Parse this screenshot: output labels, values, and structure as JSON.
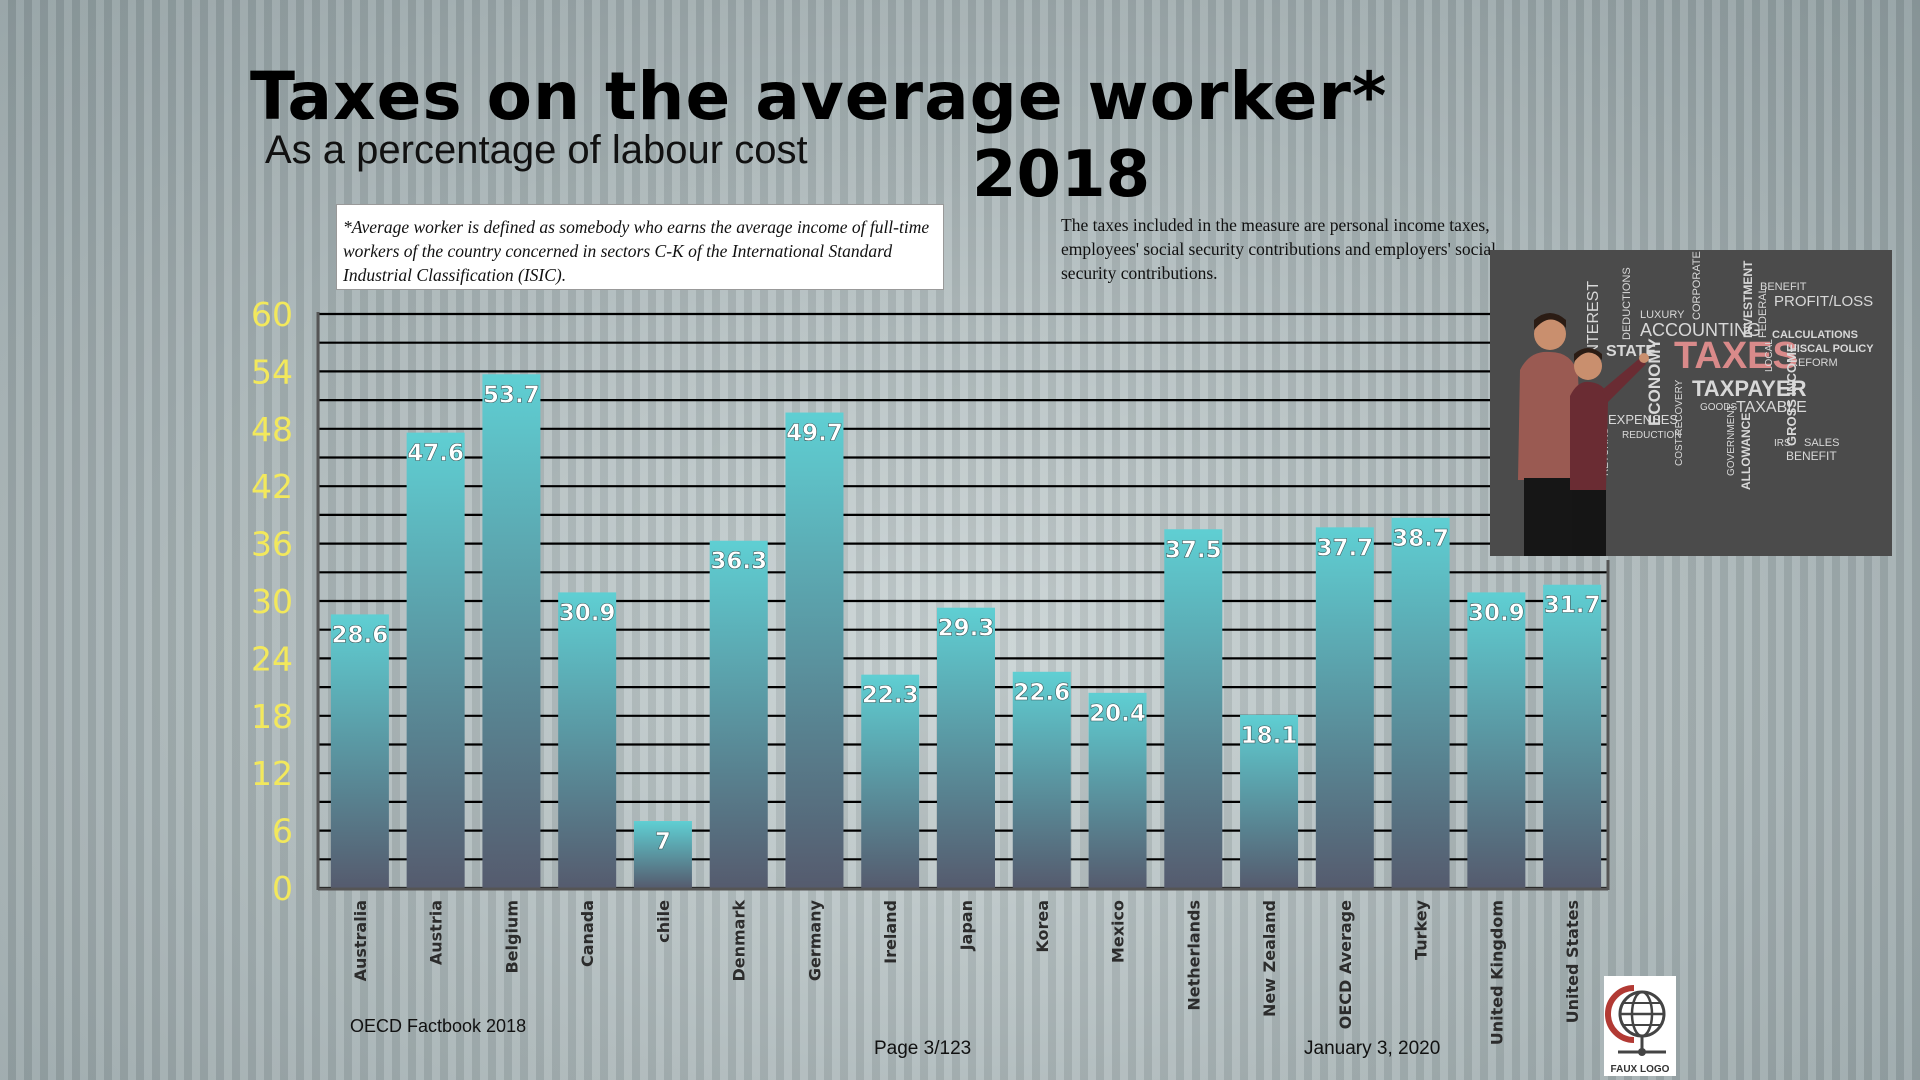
{
  "slide": {
    "title": "Taxes on the average worker*",
    "subtitle": "As a percentage of labour cost",
    "year": "2018",
    "definition": "*Average worker is defined as somebody who earns the average income of full-time workers of the country concerned in sectors C-K of the International Standard Industrial Classification (ISIC).",
    "taxes_note": "The taxes included in the measure are personal income taxes, employees' social security contributions and employers' social security contributions.",
    "source": "OECD Factbook 2018",
    "page": "Page 3/123",
    "date": "January 3, 2020",
    "logo_text": "FAUX LOGO"
  },
  "image": {
    "description_icon": "taxes-word-cloud-image",
    "words": [
      "TAXES",
      "TAXPAYER",
      "ACCOUNTING",
      "PROFIT/LOSS",
      "FISCAL POLICY",
      "ECONOMY",
      "GROSS INCOME",
      "TAXABLE",
      "CALCULATIONS",
      "STATE",
      "LUXURY",
      "SALES",
      "BENEFIT",
      "INVESTMENT",
      "FEDERAL",
      "DEDUCTIONS",
      "CORPORATE",
      "ALLOWANCE",
      "GOVERNMENT",
      "COST RECOVERY",
      "REFORM",
      "LOCAL",
      "GOODS",
      "IRS",
      "EXPENSES",
      "REDUCTION",
      "INTEREST",
      "RETURNS",
      "BENEFIT"
    ]
  },
  "colors": {
    "bar_top": "#5fcfd3",
    "bar_bottom": "#555b6e",
    "axis_label": "#f2e85c",
    "gridline": "#000000",
    "taxes_word": "#d98a8a"
  },
  "chart_data": {
    "type": "bar",
    "title": "Taxes on the average worker*",
    "subtitle": "As a percentage of labour cost",
    "categories": [
      "Australia",
      "Austria",
      "Belgium",
      "Canada",
      "chile",
      "Denmark",
      "Germany",
      "Ireland",
      "Japan",
      "Korea",
      "Mexico",
      "Netherlands",
      "New Zealand",
      "OECD Average",
      "Turkey",
      "United Kingdom",
      "United States"
    ],
    "values": [
      28.6,
      47.6,
      53.7,
      30.9,
      7,
      36.3,
      49.7,
      22.3,
      29.3,
      22.6,
      20.4,
      37.5,
      18.1,
      37.7,
      38.7,
      30.9,
      31.7
    ],
    "value_labels": [
      "28.6",
      "47.6",
      "53.7",
      "30.9",
      "7",
      "36.3",
      "49.7",
      "22.3",
      "29.3",
      "22.6",
      "20.4",
      "37.5",
      "18.1",
      "37.7",
      "38.7",
      "30.9",
      "31.7"
    ],
    "yticks": [
      "0",
      "6",
      "12",
      "18",
      "24",
      "30",
      "36",
      "42",
      "48",
      "54",
      "60"
    ],
    "ylim": [
      0,
      60
    ],
    "minor_step": 3,
    "xlabel": "",
    "ylabel": "",
    "grid": true,
    "legend": "none"
  }
}
